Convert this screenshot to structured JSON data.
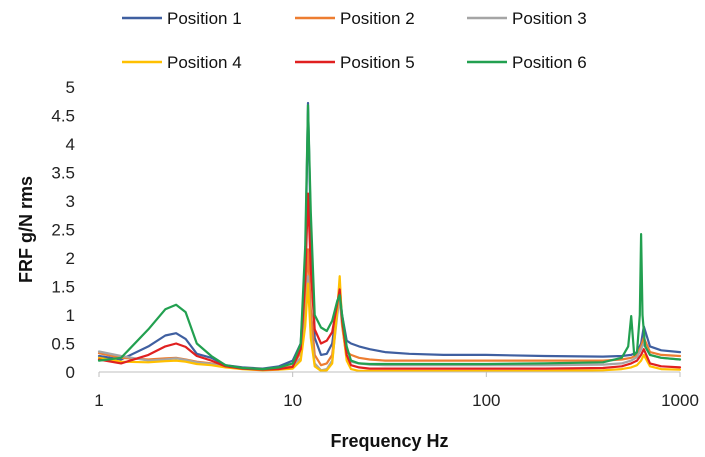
{
  "chart_data": {
    "type": "line",
    "title": "",
    "xlabel": "Frequency Hz",
    "ylabel": "FRF g/N rms",
    "x_scale": "log",
    "xlim": [
      1,
      1000
    ],
    "ylim": [
      0,
      5
    ],
    "x_ticks": [
      1,
      10,
      100,
      1000
    ],
    "x_tick_labels": [
      "1",
      "10",
      "100",
      "1000"
    ],
    "y_ticks": [
      0,
      0.5,
      1,
      1.5,
      2,
      2.5,
      3,
      3.5,
      4,
      4.5,
      5
    ],
    "y_tick_labels": [
      "0",
      "0.5",
      "1",
      "1.5",
      "2",
      "2.5",
      "3",
      "3.5",
      "4",
      "4.5",
      "5"
    ],
    "grid": false,
    "legend_position": "top",
    "series": [
      {
        "name": "Position 1",
        "color": "#3F5FA0",
        "x": [
          1,
          1.3,
          1.8,
          2.2,
          2.5,
          2.8,
          3.2,
          3.8,
          4.5,
          5.5,
          7,
          8.5,
          10,
          11,
          11.6,
          12,
          12.4,
          13,
          14,
          15,
          16,
          17,
          17.5,
          18,
          19,
          20,
          22,
          25,
          30,
          40,
          60,
          100,
          200,
          400,
          500,
          560,
          600,
          630,
          650,
          700,
          800,
          1000
        ],
        "y": [
          0.28,
          0.22,
          0.45,
          0.64,
          0.68,
          0.58,
          0.32,
          0.25,
          0.12,
          0.08,
          0.06,
          0.1,
          0.2,
          0.5,
          1.8,
          4.72,
          2.5,
          0.6,
          0.3,
          0.32,
          0.5,
          1.2,
          1.4,
          1.0,
          0.55,
          0.5,
          0.45,
          0.4,
          0.35,
          0.32,
          0.3,
          0.3,
          0.28,
          0.27,
          0.28,
          0.3,
          0.35,
          0.5,
          0.8,
          0.45,
          0.38,
          0.35
        ]
      },
      {
        "name": "Position 2",
        "color": "#ED7D31",
        "x": [
          1,
          1.3,
          1.8,
          2.2,
          2.5,
          2.8,
          3.2,
          3.8,
          4.5,
          5.5,
          7,
          8.5,
          10,
          11,
          11.6,
          12,
          12.4,
          13,
          14,
          15,
          16,
          17,
          17.5,
          18,
          19,
          20,
          22,
          25,
          30,
          40,
          60,
          100,
          200,
          400,
          500,
          560,
          600,
          630,
          650,
          700,
          800,
          1000
        ],
        "y": [
          0.33,
          0.25,
          0.22,
          0.24,
          0.25,
          0.22,
          0.18,
          0.15,
          0.1,
          0.07,
          0.05,
          0.06,
          0.1,
          0.35,
          1.2,
          2.15,
          1.1,
          0.3,
          0.12,
          0.15,
          0.3,
          1.1,
          1.55,
          0.9,
          0.35,
          0.3,
          0.25,
          0.22,
          0.2,
          0.2,
          0.2,
          0.2,
          0.2,
          0.2,
          0.22,
          0.25,
          0.3,
          0.45,
          0.6,
          0.35,
          0.3,
          0.28
        ]
      },
      {
        "name": "Position 3",
        "color": "#A5A5A5",
        "x": [
          1,
          1.3,
          1.8,
          2.2,
          2.5,
          2.8,
          3.2,
          3.8,
          4.5,
          5.5,
          7,
          8.5,
          10,
          11,
          11.6,
          12,
          12.4,
          13,
          14,
          15,
          16,
          17,
          17.5,
          18,
          19,
          20,
          22,
          25,
          30,
          40,
          60,
          100,
          200,
          400,
          500,
          560,
          600,
          630,
          650,
          700,
          800,
          1000
        ],
        "y": [
          0.36,
          0.28,
          0.2,
          0.22,
          0.24,
          0.21,
          0.17,
          0.14,
          0.09,
          0.06,
          0.04,
          0.05,
          0.08,
          0.25,
          0.9,
          1.68,
          0.7,
          0.15,
          0.03,
          0.05,
          0.2,
          1.0,
          1.3,
          0.8,
          0.25,
          0.18,
          0.15,
          0.13,
          0.12,
          0.12,
          0.12,
          0.12,
          0.12,
          0.13,
          0.15,
          0.2,
          0.26,
          0.4,
          0.5,
          0.3,
          0.25,
          0.22
        ]
      },
      {
        "name": "Position 4",
        "color": "#FFC000",
        "x": [
          1,
          1.3,
          1.8,
          2.2,
          2.5,
          2.8,
          3.2,
          3.8,
          4.5,
          5.5,
          7,
          8.5,
          10,
          11,
          11.6,
          12,
          12.4,
          13,
          14,
          15,
          16,
          17,
          17.5,
          18,
          19,
          20,
          22,
          25,
          30,
          40,
          60,
          100,
          200,
          400,
          500,
          560,
          600,
          630,
          650,
          700,
          800,
          1000
        ],
        "y": [
          0.25,
          0.18,
          0.17,
          0.19,
          0.2,
          0.18,
          0.14,
          0.12,
          0.08,
          0.05,
          0.03,
          0.04,
          0.06,
          0.2,
          0.8,
          1.55,
          0.6,
          0.1,
          0.02,
          0.03,
          0.15,
          1.1,
          1.68,
          0.85,
          0.2,
          0.05,
          0.02,
          0.02,
          0.02,
          0.02,
          0.02,
          0.02,
          0.02,
          0.03,
          0.05,
          0.08,
          0.12,
          0.2,
          0.3,
          0.1,
          0.05,
          0.04
        ]
      },
      {
        "name": "Position 5",
        "color": "#E02020",
        "x": [
          1,
          1.3,
          1.8,
          2.2,
          2.5,
          2.8,
          3.2,
          3.8,
          4.5,
          5.5,
          7,
          8.5,
          10,
          11,
          11.6,
          12,
          12.4,
          13,
          14,
          15,
          16,
          17,
          17.5,
          18,
          19,
          20,
          22,
          25,
          30,
          40,
          60,
          100,
          200,
          400,
          500,
          560,
          600,
          630,
          650,
          700,
          800,
          1000
        ],
        "y": [
          0.22,
          0.15,
          0.3,
          0.45,
          0.5,
          0.44,
          0.28,
          0.2,
          0.1,
          0.06,
          0.04,
          0.05,
          0.09,
          0.4,
          1.6,
          3.13,
          1.8,
          0.75,
          0.5,
          0.55,
          0.7,
          1.2,
          1.45,
          0.9,
          0.3,
          0.12,
          0.08,
          0.06,
          0.06,
          0.06,
          0.06,
          0.06,
          0.06,
          0.07,
          0.1,
          0.15,
          0.2,
          0.3,
          0.4,
          0.15,
          0.1,
          0.08
        ]
      },
      {
        "name": "Position 6",
        "color": "#22A050",
        "x": [
          1,
          1.3,
          1.8,
          2.2,
          2.5,
          2.8,
          3.2,
          3.8,
          4.5,
          5.5,
          7,
          8.5,
          10,
          11,
          11.6,
          12,
          12.4,
          13,
          14,
          15,
          16,
          17,
          17.5,
          18,
          19,
          20,
          22,
          25,
          30,
          40,
          60,
          100,
          200,
          400,
          500,
          540,
          560,
          580,
          600,
          620,
          630,
          640,
          660,
          700,
          800,
          1000
        ],
        "y": [
          0.2,
          0.25,
          0.75,
          1.1,
          1.18,
          1.05,
          0.5,
          0.28,
          0.12,
          0.07,
          0.05,
          0.08,
          0.15,
          0.5,
          2.2,
          4.68,
          2.8,
          1.0,
          0.78,
          0.72,
          0.9,
          1.25,
          1.35,
          1.0,
          0.45,
          0.2,
          0.15,
          0.14,
          0.14,
          0.14,
          0.14,
          0.14,
          0.15,
          0.17,
          0.25,
          0.45,
          0.98,
          0.3,
          0.35,
          1.0,
          2.42,
          1.0,
          0.45,
          0.3,
          0.25,
          0.22
        ]
      }
    ]
  }
}
